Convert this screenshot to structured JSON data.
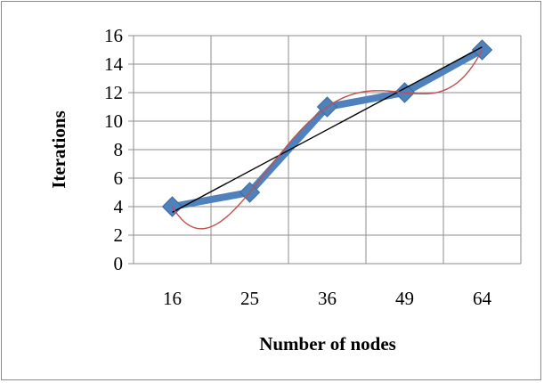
{
  "chart_data": {
    "type": "line",
    "title": "",
    "xlabel": "Number of nodes",
    "ylabel": "Iterations",
    "categories": [
      "16",
      "25",
      "36",
      "49",
      "64"
    ],
    "series": [
      {
        "values": [
          4,
          5,
          11,
          12,
          15
        ],
        "color": "#4f81bd",
        "marker": "diamond"
      }
    ],
    "trendlines": [
      {
        "kind": "linear",
        "color": "#000000"
      },
      {
        "kind": "polynomial",
        "color": "#c0504d"
      }
    ],
    "ylim": [
      0,
      16
    ],
    "yticks": [
      0,
      2,
      4,
      6,
      8,
      10,
      12,
      14,
      16
    ],
    "grid": true,
    "legend": "none"
  },
  "colors": {
    "grid": "#8c8c8c",
    "series": "#4f81bd",
    "linear_trend": "#000000",
    "poly_trend": "#c0504d"
  }
}
